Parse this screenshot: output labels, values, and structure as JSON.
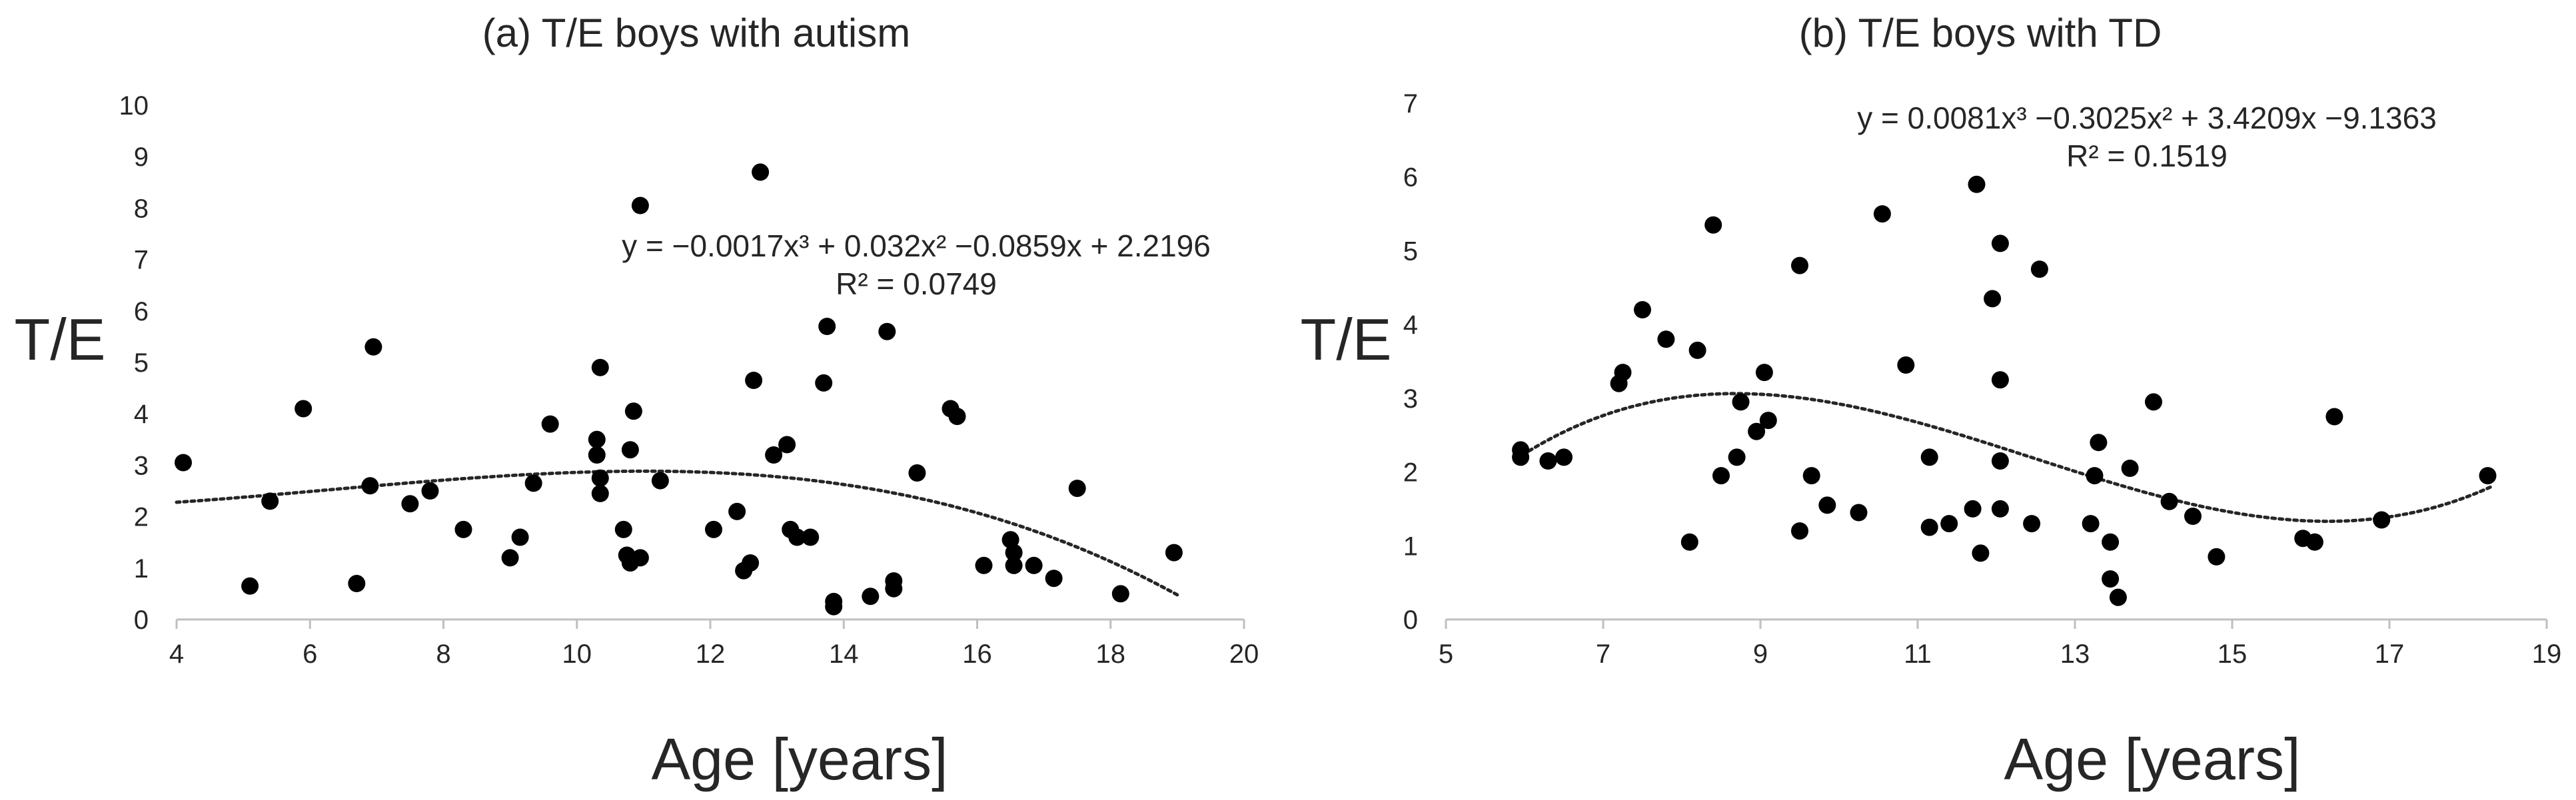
{
  "chart_data": [
    {
      "type": "scatter",
      "title": "(a) T/E boys with autism",
      "xlabel": "Age [years]",
      "ylabel": "T/E",
      "xlim": [
        4,
        20
      ],
      "ylim": [
        0,
        10
      ],
      "xticks": [
        4,
        6,
        8,
        10,
        12,
        14,
        16,
        18,
        20
      ],
      "yticks": [
        0,
        1,
        2,
        3,
        4,
        5,
        6,
        7,
        8,
        9,
        10
      ],
      "grid": false,
      "trendline": {
        "type": "polynomial-3",
        "style": "dotted",
        "coefficients": [
          -0.0017,
          0.032,
          -0.0859,
          2.2196
        ],
        "x_range": [
          4,
          19
        ],
        "equation_prefix": "y = ",
        "equation_terms": [
          "−0.0017x³",
          " + 0.032x²",
          " −0.0859x",
          " + 2.2196"
        ],
        "r2_label": "R² = 0.0749"
      },
      "points": [
        [
          4.1,
          3.05
        ],
        [
          5.1,
          0.65
        ],
        [
          5.4,
          2.3
        ],
        [
          5.9,
          4.1
        ],
        [
          6.7,
          0.7
        ],
        [
          6.9,
          2.6
        ],
        [
          6.95,
          5.3
        ],
        [
          7.5,
          2.25
        ],
        [
          7.8,
          2.5
        ],
        [
          8.3,
          1.75
        ],
        [
          9.0,
          1.2
        ],
        [
          9.15,
          1.6
        ],
        [
          9.35,
          2.65
        ],
        [
          9.6,
          3.8
        ],
        [
          10.3,
          3.5
        ],
        [
          10.3,
          3.2
        ],
        [
          10.35,
          4.9
        ],
        [
          10.35,
          2.75
        ],
        [
          10.35,
          2.45
        ],
        [
          10.7,
          1.75
        ],
        [
          10.75,
          1.25
        ],
        [
          10.8,
          3.3
        ],
        [
          10.8,
          1.1
        ],
        [
          10.85,
          4.05
        ],
        [
          10.95,
          8.05
        ],
        [
          10.95,
          1.2
        ],
        [
          11.25,
          2.7
        ],
        [
          12.05,
          1.75
        ],
        [
          12.4,
          2.1
        ],
        [
          12.5,
          0.95
        ],
        [
          12.6,
          1.1
        ],
        [
          12.65,
          4.65
        ],
        [
          12.75,
          8.7
        ],
        [
          12.95,
          3.2
        ],
        [
          13.15,
          3.4
        ],
        [
          13.2,
          1.75
        ],
        [
          13.3,
          1.6
        ],
        [
          13.5,
          1.6
        ],
        [
          13.7,
          4.6
        ],
        [
          13.75,
          5.7
        ],
        [
          13.85,
          0.25
        ],
        [
          13.85,
          0.35
        ],
        [
          14.4,
          0.45
        ],
        [
          14.65,
          5.6
        ],
        [
          14.75,
          0.6
        ],
        [
          14.75,
          0.75
        ],
        [
          15.1,
          2.85
        ],
        [
          15.6,
          4.1
        ],
        [
          15.7,
          3.95
        ],
        [
          16.1,
          1.05
        ],
        [
          16.5,
          1.55
        ],
        [
          16.55,
          1.3
        ],
        [
          16.55,
          1.05
        ],
        [
          16.85,
          1.05
        ],
        [
          17.15,
          0.8
        ],
        [
          17.5,
          2.55
        ],
        [
          18.15,
          0.5
        ],
        [
          18.95,
          1.3
        ]
      ]
    },
    {
      "type": "scatter",
      "title": "(b) T/E boys with TD",
      "xlabel": "Age [years]",
      "ylabel": "T/E",
      "xlim": [
        5,
        19
      ],
      "ylim": [
        0,
        7
      ],
      "xticks": [
        5,
        7,
        9,
        11,
        13,
        15,
        17,
        19
      ],
      "yticks": [
        0,
        1,
        2,
        3,
        4,
        5,
        6,
        7
      ],
      "grid": false,
      "trendline": {
        "type": "polynomial-3",
        "style": "dotted",
        "coefficients": [
          0.0081,
          -0.3025,
          3.4209,
          -9.1363
        ],
        "x_range": [
          5.9,
          18.3
        ],
        "equation_prefix": "y = ",
        "equation_terms": [
          "0.0081x³",
          " −0.3025x²",
          " + 3.4209x",
          " −9.1363"
        ],
        "r2_label": "R² = 0.1519"
      },
      "points": [
        [
          5.95,
          2.2
        ],
        [
          5.95,
          2.3
        ],
        [
          6.3,
          2.15
        ],
        [
          6.5,
          2.2
        ],
        [
          7.2,
          3.2
        ],
        [
          7.25,
          3.35
        ],
        [
          7.5,
          4.2
        ],
        [
          7.8,
          3.8
        ],
        [
          8.1,
          1.05
        ],
        [
          8.2,
          3.65
        ],
        [
          8.4,
          5.35
        ],
        [
          8.5,
          1.95
        ],
        [
          8.7,
          2.2
        ],
        [
          8.75,
          2.95
        ],
        [
          8.95,
          2.55
        ],
        [
          9.05,
          3.35
        ],
        [
          9.1,
          2.7
        ],
        [
          9.5,
          4.8
        ],
        [
          9.5,
          1.2
        ],
        [
          9.65,
          1.95
        ],
        [
          9.85,
          1.55
        ],
        [
          10.25,
          1.45
        ],
        [
          10.55,
          5.5
        ],
        [
          10.85,
          3.45
        ],
        [
          11.15,
          2.2
        ],
        [
          11.15,
          1.25
        ],
        [
          11.4,
          1.3
        ],
        [
          11.7,
          1.5
        ],
        [
          11.75,
          5.9
        ],
        [
          11.8,
          0.9
        ],
        [
          11.95,
          4.35
        ],
        [
          12.05,
          5.1
        ],
        [
          12.05,
          3.25
        ],
        [
          12.05,
          2.15
        ],
        [
          12.05,
          1.5
        ],
        [
          12.45,
          1.3
        ],
        [
          12.55,
          4.75
        ],
        [
          13.2,
          1.3
        ],
        [
          13.25,
          1.95
        ],
        [
          13.3,
          2.4
        ],
        [
          13.45,
          1.05
        ],
        [
          13.45,
          0.55
        ],
        [
          13.55,
          0.3
        ],
        [
          13.7,
          2.05
        ],
        [
          14.0,
          2.95
        ],
        [
          14.2,
          1.6
        ],
        [
          14.5,
          1.4
        ],
        [
          14.8,
          0.85
        ],
        [
          15.9,
          1.1
        ],
        [
          16.05,
          1.05
        ],
        [
          16.3,
          2.75
        ],
        [
          16.9,
          1.35
        ],
        [
          18.25,
          1.95
        ]
      ]
    }
  ]
}
